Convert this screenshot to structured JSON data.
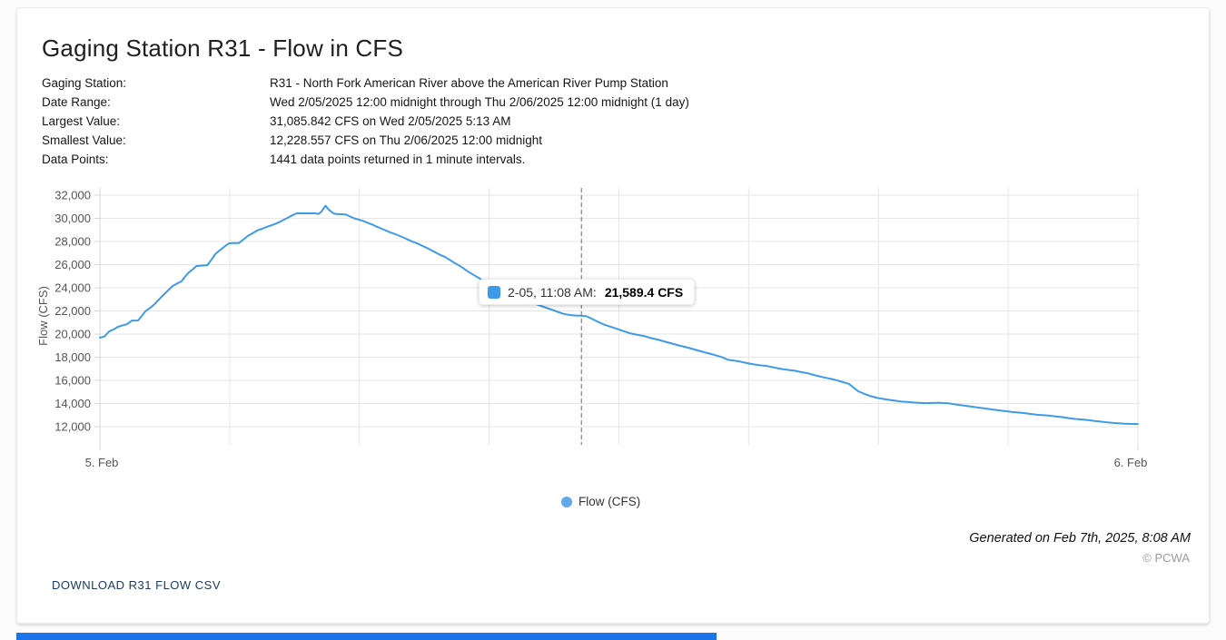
{
  "header": {
    "title": "Gaging Station R31 - Flow in CFS"
  },
  "metadata": [
    {
      "label": "Gaging Station:",
      "value": "R31 - North Fork American River above the American River Pump Station"
    },
    {
      "label": "Date Range:",
      "value": "Wed 2/05/2025 12:00 midnight through Thu 2/06/2025 12:00 midnight (1 day)"
    },
    {
      "label": "Largest Value:",
      "value": "31,085.842 CFS on Wed 2/05/2025 5:13 AM"
    },
    {
      "label": "Smallest Value:",
      "value": "12,228.557 CFS on Thu 2/06/2025 12:00 midnight"
    },
    {
      "label": "Data Points:",
      "value": "1441 data points returned in 1 minute intervals."
    }
  ],
  "tooltip": {
    "label": "2-05, 11:08 AM:",
    "value": "21,589.4 CFS"
  },
  "legend": {
    "series_label": "Flow (CFS)"
  },
  "footer": {
    "generated": "Generated on Feb 7th, 2025, 8:08 AM",
    "copyright": "© PCWA",
    "download_label": "DOWNLOAD R31 FLOW CSV"
  },
  "colors": {
    "series": "#3d9be9",
    "legend_marker": "#61a9ec",
    "grid": "#e6e6e6",
    "axis": "#cfd8e3",
    "crosshair": "#666666",
    "link": "#1b3c61",
    "progress": "#1a73e8"
  },
  "chart_data": {
    "type": "line",
    "title": "",
    "ylabel": "Flow (CFS)",
    "series_name": "Flow (CFS)",
    "x_axis": {
      "start_label": "5. Feb",
      "end_label": "6. Feb",
      "range_minutes": [
        0,
        1440
      ],
      "gridline_every_minutes": 180
    },
    "y_axis": {
      "min": 12000,
      "max": 32000,
      "ticks": [
        12000,
        14000,
        16000,
        18000,
        20000,
        22000,
        24000,
        26000,
        28000,
        30000,
        32000
      ]
    },
    "largest_value_cfs": 31085.842,
    "smallest_value_cfs": 12228.557,
    "crosshair_minute": 668,
    "highlight_point": {
      "minute": 668,
      "value_cfs": 21589.4,
      "time_label": "2-05, 11:08 AM"
    },
    "points_minute_cfs": [
      [
        0,
        19690
      ],
      [
        6,
        19780
      ],
      [
        13,
        20240
      ],
      [
        20,
        20430
      ],
      [
        25,
        20630
      ],
      [
        32,
        20760
      ],
      [
        38,
        20870
      ],
      [
        44,
        21150
      ],
      [
        53,
        21180
      ],
      [
        58,
        21550
      ],
      [
        63,
        21960
      ],
      [
        70,
        22280
      ],
      [
        76,
        22590
      ],
      [
        82,
        23000
      ],
      [
        88,
        23375
      ],
      [
        95,
        23800
      ],
      [
        101,
        24160
      ],
      [
        107,
        24360
      ],
      [
        113,
        24550
      ],
      [
        118,
        24950
      ],
      [
        123,
        25300
      ],
      [
        129,
        25600
      ],
      [
        134,
        25880
      ],
      [
        141,
        25910
      ],
      [
        149,
        25950
      ],
      [
        155,
        26450
      ],
      [
        160,
        26900
      ],
      [
        166,
        27230
      ],
      [
        173,
        27560
      ],
      [
        179,
        27840
      ],
      [
        186,
        27860
      ],
      [
        193,
        27870
      ],
      [
        199,
        28170
      ],
      [
        205,
        28470
      ],
      [
        212,
        28710
      ],
      [
        218,
        28940
      ],
      [
        225,
        29100
      ],
      [
        231,
        29250
      ],
      [
        237,
        29380
      ],
      [
        243,
        29510
      ],
      [
        250,
        29700
      ],
      [
        256,
        29900
      ],
      [
        262,
        30100
      ],
      [
        268,
        30290
      ],
      [
        273,
        30430
      ],
      [
        280,
        30440
      ],
      [
        287,
        30430
      ],
      [
        293,
        30440
      ],
      [
        299,
        30430
      ],
      [
        303,
        30380
      ],
      [
        307,
        30560
      ],
      [
        313,
        31085.8
      ],
      [
        318,
        30720
      ],
      [
        324,
        30430
      ],
      [
        328,
        30370
      ],
      [
        334,
        30360
      ],
      [
        341,
        30330
      ],
      [
        347,
        30160
      ],
      [
        353,
        30000
      ],
      [
        359,
        29890
      ],
      [
        365,
        29780
      ],
      [
        371,
        29620
      ],
      [
        378,
        29460
      ],
      [
        384,
        29280
      ],
      [
        391,
        29100
      ],
      [
        397,
        28940
      ],
      [
        403,
        28780
      ],
      [
        410,
        28630
      ],
      [
        416,
        28470
      ],
      [
        422,
        28310
      ],
      [
        428,
        28140
      ],
      [
        434,
        27980
      ],
      [
        441,
        27820
      ],
      [
        447,
        27630
      ],
      [
        454,
        27430
      ],
      [
        460,
        27230
      ],
      [
        466,
        27040
      ],
      [
        472,
        26850
      ],
      [
        479,
        26650
      ],
      [
        485,
        26420
      ],
      [
        491,
        26180
      ],
      [
        498,
        25940
      ],
      [
        504,
        25700
      ],
      [
        510,
        25430
      ],
      [
        517,
        25160
      ],
      [
        526,
        24830
      ],
      [
        535,
        24500
      ],
      [
        544,
        24180
      ],
      [
        554,
        23850
      ],
      [
        563,
        23550
      ],
      [
        573,
        23250
      ],
      [
        582,
        23020
      ],
      [
        592,
        22800
      ],
      [
        599,
        22680
      ],
      [
        607,
        22550
      ],
      [
        617,
        22320
      ],
      [
        627,
        22100
      ],
      [
        635,
        21920
      ],
      [
        643,
        21750
      ],
      [
        653,
        21640
      ],
      [
        660,
        21600
      ],
      [
        668,
        21589.4
      ],
      [
        675,
        21540
      ],
      [
        683,
        21300
      ],
      [
        691,
        21060
      ],
      [
        699,
        20830
      ],
      [
        708,
        20640
      ],
      [
        718,
        20440
      ],
      [
        727,
        20240
      ],
      [
        737,
        20050
      ],
      [
        746,
        19930
      ],
      [
        756,
        19810
      ],
      [
        765,
        19650
      ],
      [
        775,
        19500
      ],
      [
        784,
        19340
      ],
      [
        794,
        19180
      ],
      [
        803,
        19020
      ],
      [
        813,
        18870
      ],
      [
        822,
        18710
      ],
      [
        831,
        18560
      ],
      [
        840,
        18400
      ],
      [
        850,
        18240
      ],
      [
        856,
        18130
      ],
      [
        863,
        18010
      ],
      [
        871,
        17780
      ],
      [
        880,
        17700
      ],
      [
        888,
        17620
      ],
      [
        897,
        17500
      ],
      [
        907,
        17380
      ],
      [
        916,
        17300
      ],
      [
        926,
        17230
      ],
      [
        935,
        17110
      ],
      [
        945,
        16990
      ],
      [
        954,
        16910
      ],
      [
        964,
        16830
      ],
      [
        973,
        16710
      ],
      [
        983,
        16600
      ],
      [
        992,
        16440
      ],
      [
        1002,
        16290
      ],
      [
        1011,
        16170
      ],
      [
        1020,
        16050
      ],
      [
        1029,
        15880
      ],
      [
        1039,
        15700
      ],
      [
        1045,
        15400
      ],
      [
        1052,
        15060
      ],
      [
        1058,
        14900
      ],
      [
        1064,
        14750
      ],
      [
        1070,
        14630
      ],
      [
        1077,
        14510
      ],
      [
        1085,
        14410
      ],
      [
        1093,
        14330
      ],
      [
        1102,
        14250
      ],
      [
        1111,
        14180
      ],
      [
        1120,
        14130
      ],
      [
        1129,
        14090
      ],
      [
        1137,
        14060
      ],
      [
        1146,
        14030
      ],
      [
        1155,
        14050
      ],
      [
        1164,
        14070
      ],
      [
        1170,
        14040
      ],
      [
        1177,
        14020
      ],
      [
        1185,
        13940
      ],
      [
        1194,
        13860
      ],
      [
        1203,
        13790
      ],
      [
        1212,
        13710
      ],
      [
        1221,
        13630
      ],
      [
        1230,
        13560
      ],
      [
        1238,
        13480
      ],
      [
        1247,
        13410
      ],
      [
        1256,
        13340
      ],
      [
        1265,
        13270
      ],
      [
        1273,
        13220
      ],
      [
        1282,
        13180
      ],
      [
        1291,
        13100
      ],
      [
        1300,
        13030
      ],
      [
        1309,
        12990
      ],
      [
        1318,
        12950
      ],
      [
        1326,
        12880
      ],
      [
        1335,
        12820
      ],
      [
        1344,
        12740
      ],
      [
        1353,
        12670
      ],
      [
        1362,
        12620
      ],
      [
        1371,
        12570
      ],
      [
        1379,
        12500
      ],
      [
        1388,
        12440
      ],
      [
        1397,
        12380
      ],
      [
        1406,
        12320
      ],
      [
        1413,
        12290
      ],
      [
        1421,
        12260
      ],
      [
        1427,
        12245
      ],
      [
        1434,
        12235
      ],
      [
        1440,
        12228.6
      ]
    ]
  }
}
